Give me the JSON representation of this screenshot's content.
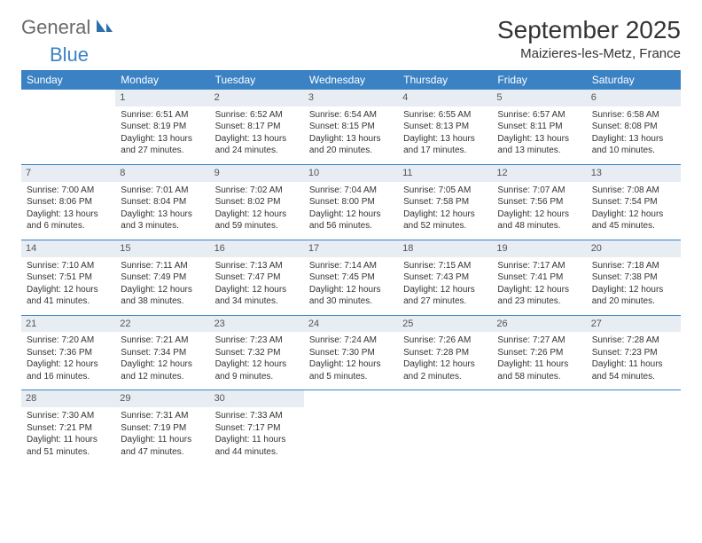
{
  "brand": {
    "main": "General",
    "sub": "Blue"
  },
  "title": "September 2025",
  "location": "Maizieres-les-Metz, France",
  "colors": {
    "header_bg": "#3b82c4",
    "header_fg": "#ffffff",
    "daynum_bg": "#e7edf3",
    "rule": "#3b82c4",
    "text": "#333333"
  },
  "dow": [
    "Sunday",
    "Monday",
    "Tuesday",
    "Wednesday",
    "Thursday",
    "Friday",
    "Saturday"
  ],
  "weeks": [
    [
      null,
      {
        "n": "1",
        "sr": "6:51 AM",
        "ss": "8:19 PM",
        "dl": "13 hours and 27 minutes."
      },
      {
        "n": "2",
        "sr": "6:52 AM",
        "ss": "8:17 PM",
        "dl": "13 hours and 24 minutes."
      },
      {
        "n": "3",
        "sr": "6:54 AM",
        "ss": "8:15 PM",
        "dl": "13 hours and 20 minutes."
      },
      {
        "n": "4",
        "sr": "6:55 AM",
        "ss": "8:13 PM",
        "dl": "13 hours and 17 minutes."
      },
      {
        "n": "5",
        "sr": "6:57 AM",
        "ss": "8:11 PM",
        "dl": "13 hours and 13 minutes."
      },
      {
        "n": "6",
        "sr": "6:58 AM",
        "ss": "8:08 PM",
        "dl": "13 hours and 10 minutes."
      }
    ],
    [
      {
        "n": "7",
        "sr": "7:00 AM",
        "ss": "8:06 PM",
        "dl": "13 hours and 6 minutes."
      },
      {
        "n": "8",
        "sr": "7:01 AM",
        "ss": "8:04 PM",
        "dl": "13 hours and 3 minutes."
      },
      {
        "n": "9",
        "sr": "7:02 AM",
        "ss": "8:02 PM",
        "dl": "12 hours and 59 minutes."
      },
      {
        "n": "10",
        "sr": "7:04 AM",
        "ss": "8:00 PM",
        "dl": "12 hours and 56 minutes."
      },
      {
        "n": "11",
        "sr": "7:05 AM",
        "ss": "7:58 PM",
        "dl": "12 hours and 52 minutes."
      },
      {
        "n": "12",
        "sr": "7:07 AM",
        "ss": "7:56 PM",
        "dl": "12 hours and 48 minutes."
      },
      {
        "n": "13",
        "sr": "7:08 AM",
        "ss": "7:54 PM",
        "dl": "12 hours and 45 minutes."
      }
    ],
    [
      {
        "n": "14",
        "sr": "7:10 AM",
        "ss": "7:51 PM",
        "dl": "12 hours and 41 minutes."
      },
      {
        "n": "15",
        "sr": "7:11 AM",
        "ss": "7:49 PM",
        "dl": "12 hours and 38 minutes."
      },
      {
        "n": "16",
        "sr": "7:13 AM",
        "ss": "7:47 PM",
        "dl": "12 hours and 34 minutes."
      },
      {
        "n": "17",
        "sr": "7:14 AM",
        "ss": "7:45 PM",
        "dl": "12 hours and 30 minutes."
      },
      {
        "n": "18",
        "sr": "7:15 AM",
        "ss": "7:43 PM",
        "dl": "12 hours and 27 minutes."
      },
      {
        "n": "19",
        "sr": "7:17 AM",
        "ss": "7:41 PM",
        "dl": "12 hours and 23 minutes."
      },
      {
        "n": "20",
        "sr": "7:18 AM",
        "ss": "7:38 PM",
        "dl": "12 hours and 20 minutes."
      }
    ],
    [
      {
        "n": "21",
        "sr": "7:20 AM",
        "ss": "7:36 PM",
        "dl": "12 hours and 16 minutes."
      },
      {
        "n": "22",
        "sr": "7:21 AM",
        "ss": "7:34 PM",
        "dl": "12 hours and 12 minutes."
      },
      {
        "n": "23",
        "sr": "7:23 AM",
        "ss": "7:32 PM",
        "dl": "12 hours and 9 minutes."
      },
      {
        "n": "24",
        "sr": "7:24 AM",
        "ss": "7:30 PM",
        "dl": "12 hours and 5 minutes."
      },
      {
        "n": "25",
        "sr": "7:26 AM",
        "ss": "7:28 PM",
        "dl": "12 hours and 2 minutes."
      },
      {
        "n": "26",
        "sr": "7:27 AM",
        "ss": "7:26 PM",
        "dl": "11 hours and 58 minutes."
      },
      {
        "n": "27",
        "sr": "7:28 AM",
        "ss": "7:23 PM",
        "dl": "11 hours and 54 minutes."
      }
    ],
    [
      {
        "n": "28",
        "sr": "7:30 AM",
        "ss": "7:21 PM",
        "dl": "11 hours and 51 minutes."
      },
      {
        "n": "29",
        "sr": "7:31 AM",
        "ss": "7:19 PM",
        "dl": "11 hours and 47 minutes."
      },
      {
        "n": "30",
        "sr": "7:33 AM",
        "ss": "7:17 PM",
        "dl": "11 hours and 44 minutes."
      },
      null,
      null,
      null,
      null
    ]
  ],
  "labels": {
    "sunrise": "Sunrise:",
    "sunset": "Sunset:",
    "daylight": "Daylight:"
  }
}
